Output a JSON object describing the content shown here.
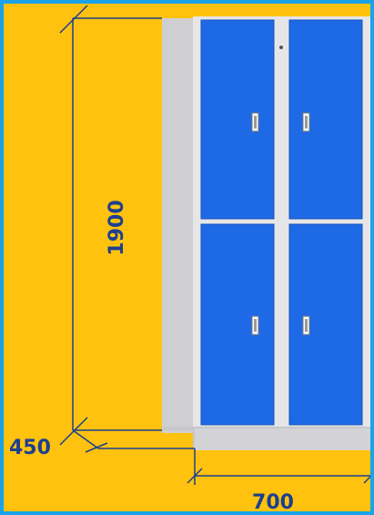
{
  "diagram": {
    "subject": "locker-cabinet-2-column-4-door",
    "dimensions": {
      "height": "1900",
      "depth": "450",
      "width": "700"
    },
    "colors": {
      "background": "#ffc20e",
      "frame_border": "#1aa3e8",
      "cabinet_side": "#cfcfd2",
      "cabinet_front": "#e6e6e8",
      "door": "#1e6ae6",
      "door_edge": "#1452b8",
      "dimension_line": "#1d3f8f",
      "plinth": "#c7c7cb"
    },
    "icons": {
      "handle": "door-handle-icon",
      "lock": "keyhole-icon"
    }
  }
}
